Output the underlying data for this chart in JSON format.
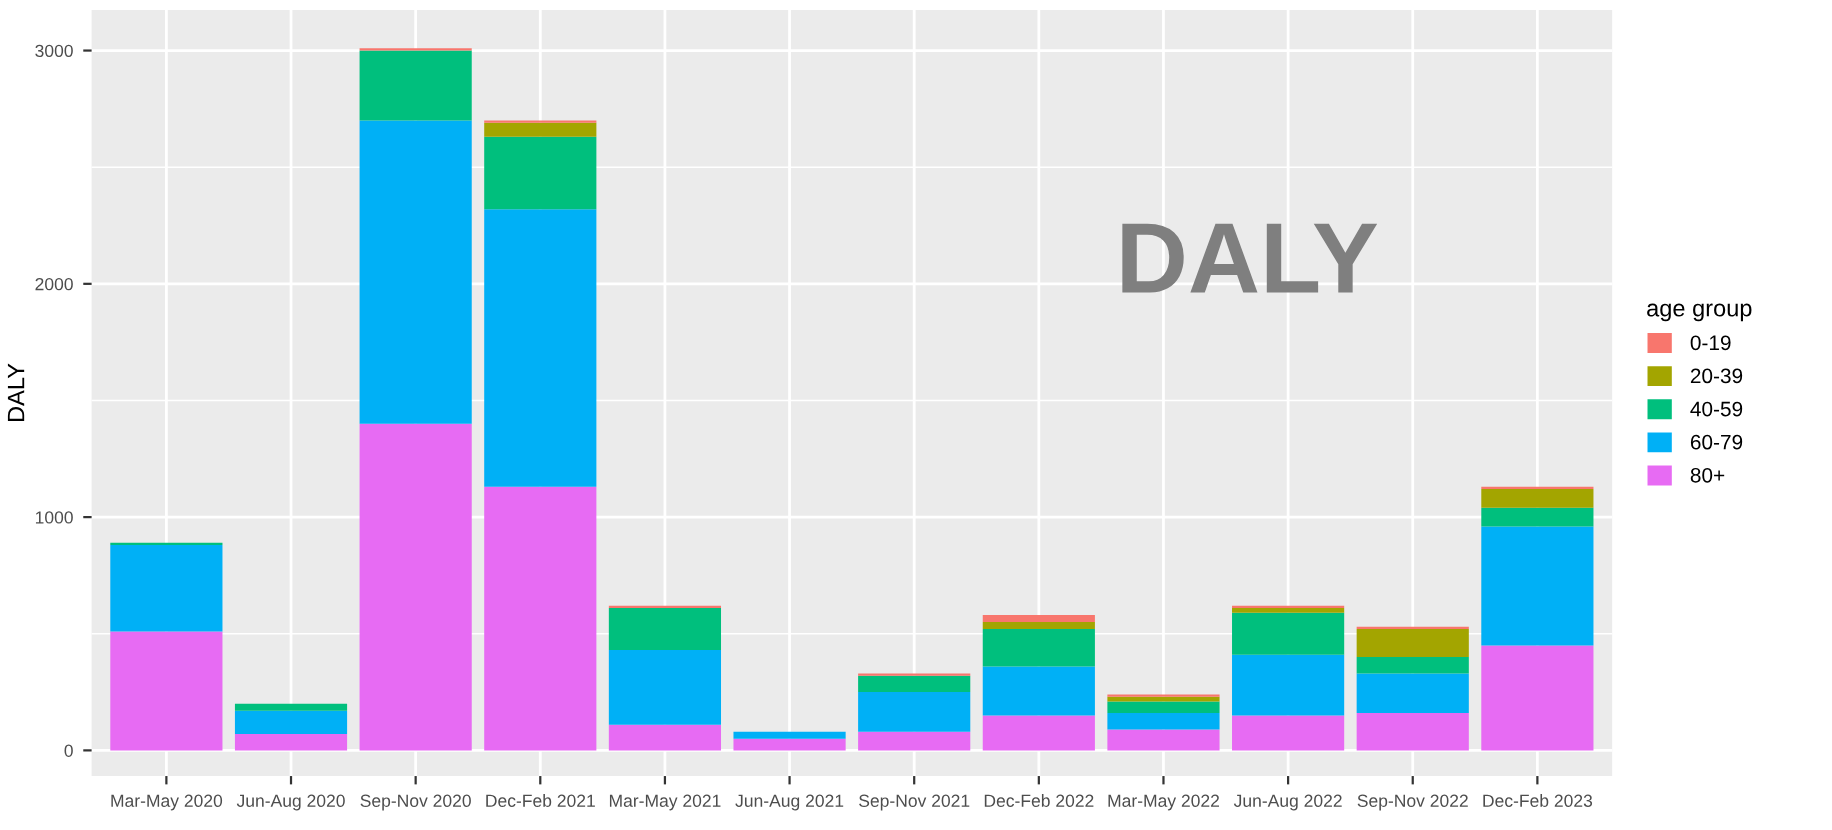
{
  "chart_data": {
    "type": "bar",
    "stacked": true,
    "ylabel": "DALY",
    "legend_title": "age group",
    "legend": "right",
    "grid": true,
    "annotations": [
      "DALY"
    ],
    "categories": [
      "Mar-May 2020",
      "Jun-Aug 2020",
      "Sep-Nov 2020",
      "Dec-Feb 2021",
      "Mar-May 2021",
      "Jun-Aug 2021",
      "Sep-Nov 2021",
      "Dec-Feb 2022",
      "Mar-May 2022",
      "Jun-Aug 2022",
      "Sep-Nov 2022",
      "Dec-Feb 2023"
    ],
    "ylim": [
      -110,
      3174
    ],
    "yticks": [
      0,
      {
        "value": 500,
        "label": null
      },
      1000,
      {
        "value": 1500,
        "label": null
      },
      2000,
      {
        "value": 2500,
        "label": null
      },
      3000
    ],
    "series": [
      {
        "name": "80+",
        "color": "#e76bf3",
        "values": [
          510,
          70,
          1400,
          1130,
          110,
          50,
          80,
          150,
          90,
          150,
          160,
          450
        ]
      },
      {
        "name": "60-79",
        "color": "#00b0f6",
        "values": [
          370,
          100,
          1300,
          1190,
          320,
          30,
          170,
          210,
          70,
          260,
          170,
          510
        ]
      },
      {
        "name": "40-59",
        "color": "#00bf7d",
        "values": [
          10,
          30,
          300,
          310,
          180,
          0,
          70,
          160,
          50,
          180,
          70,
          80
        ]
      },
      {
        "name": "20-39",
        "color": "#a3a500",
        "values": [
          0,
          0,
          0,
          60,
          0,
          0,
          0,
          30,
          20,
          20,
          120,
          80
        ]
      },
      {
        "name": "0-19",
        "color": "#f8766d",
        "values": [
          0,
          0,
          10,
          10,
          10,
          0,
          10,
          30,
          10,
          10,
          10,
          10
        ]
      }
    ]
  }
}
